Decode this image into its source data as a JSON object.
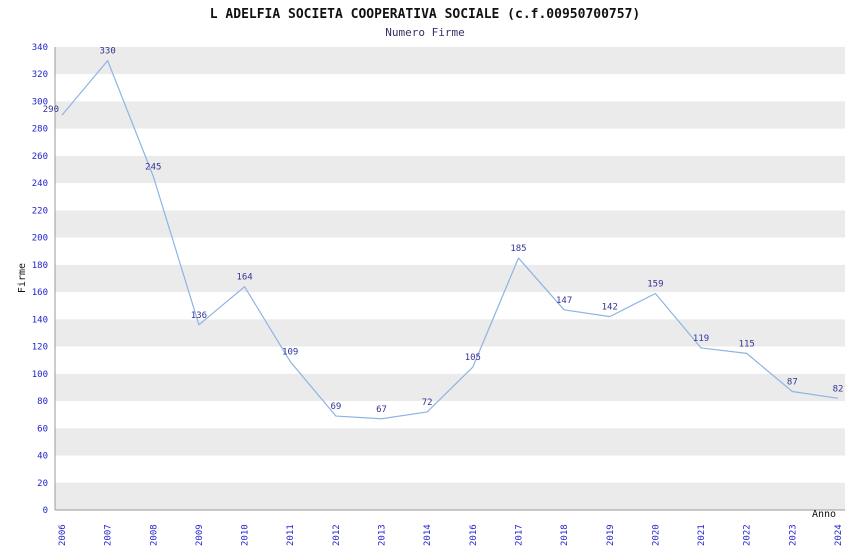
{
  "header": {
    "title": "L ADELFIA SOCIETA COOPERATIVA SOCIALE (c.f.00950700757)",
    "subtitle": "Numero Firme"
  },
  "chart_data": {
    "type": "line",
    "title": "L ADELFIA SOCIETA COOPERATIVA SOCIALE (c.f.00950700757)",
    "subtitle": "Numero Firme",
    "xlabel": "Anno",
    "ylabel": "Firme",
    "categories": [
      "2006",
      "2007",
      "2008",
      "2009",
      "2010",
      "2011",
      "2012",
      "2013",
      "2014",
      "2016",
      "2017",
      "2018",
      "2019",
      "2020",
      "2021",
      "2022",
      "2023",
      "2024"
    ],
    "values": [
      290,
      330,
      245,
      136,
      164,
      109,
      69,
      67,
      72,
      105,
      185,
      147,
      142,
      159,
      119,
      115,
      87,
      82
    ],
    "ylim": [
      0,
      340
    ],
    "ytick_step": 20,
    "grid": "horizontal-bands",
    "legend": "none",
    "colors": {
      "line": "#8eb4e3",
      "point_label": "#333399",
      "tick_label": "#2222cc",
      "band_gray": "#ebebeb",
      "band_white": "#ffffff",
      "axis_line": "#999999"
    }
  }
}
